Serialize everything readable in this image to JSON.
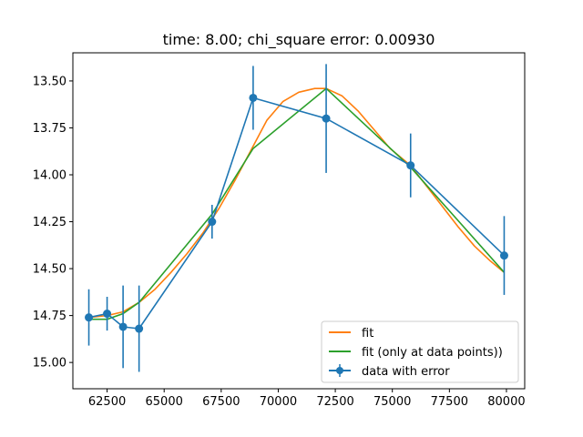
{
  "chart_data": {
    "type": "line",
    "title": "time: 8.00; chi_square error: 0.00930",
    "xlabel": "",
    "ylabel": "",
    "xlim": [
      61000,
      80800
    ],
    "ylim": [
      13.35,
      15.14
    ],
    "y_inverted": true,
    "grid": false,
    "legend_position": "lower right",
    "x_ticks": [
      {
        "value": 62500,
        "label": "62500"
      },
      {
        "value": 65000,
        "label": "65000"
      },
      {
        "value": 67500,
        "label": "67500"
      },
      {
        "value": 70000,
        "label": "70000"
      },
      {
        "value": 72500,
        "label": "72500"
      },
      {
        "value": 75000,
        "label": "75000"
      },
      {
        "value": 77500,
        "label": "77500"
      },
      {
        "value": 80000,
        "label": "80000"
      }
    ],
    "y_ticks": [
      {
        "value": 13.5,
        "label": "13.50"
      },
      {
        "value": 13.75,
        "label": "13.75"
      },
      {
        "value": 14.0,
        "label": "14.00"
      },
      {
        "value": 14.25,
        "label": "14.25"
      },
      {
        "value": 14.5,
        "label": "14.50"
      },
      {
        "value": 14.75,
        "label": "14.75"
      },
      {
        "value": 15.0,
        "label": "15.00"
      }
    ],
    "series": [
      {
        "name": "fit",
        "color": "#ff7f0e",
        "style": "line",
        "x": [
          61700,
          62500,
          63200,
          63900,
          64600,
          65300,
          66000,
          66700,
          67400,
          68100,
          68800,
          69500,
          70200,
          70900,
          71600,
          72100,
          72800,
          73500,
          74200,
          74900,
          75800,
          76500,
          77200,
          77900,
          78600,
          79300,
          79900
        ],
        "y": [
          14.76,
          14.75,
          14.73,
          14.68,
          14.61,
          14.52,
          14.42,
          14.31,
          14.18,
          14.03,
          13.87,
          13.71,
          13.61,
          13.56,
          13.54,
          13.54,
          13.58,
          13.66,
          13.76,
          13.86,
          13.95,
          14.06,
          14.17,
          14.28,
          14.38,
          14.46,
          14.52
        ]
      },
      {
        "name": "fit (only at data points))",
        "color": "#2ca02c",
        "style": "line",
        "x": [
          61700,
          62500,
          63200,
          63900,
          67100,
          68900,
          72100,
          75800,
          79900
        ],
        "y": [
          14.77,
          14.77,
          14.74,
          14.68,
          14.21,
          13.86,
          13.54,
          13.96,
          14.52
        ]
      },
      {
        "name": "data with error",
        "color": "#1f77b4",
        "style": "errorbar",
        "x": [
          61700,
          62500,
          63200,
          63900,
          67100,
          68900,
          72100,
          75800,
          79900
        ],
        "y": [
          14.76,
          14.74,
          14.81,
          14.82,
          14.25,
          13.59,
          13.7,
          13.95,
          14.43
        ],
        "yerr": [
          0.15,
          0.09,
          0.22,
          0.23,
          0.09,
          0.17,
          0.29,
          0.17,
          0.21
        ]
      }
    ]
  }
}
